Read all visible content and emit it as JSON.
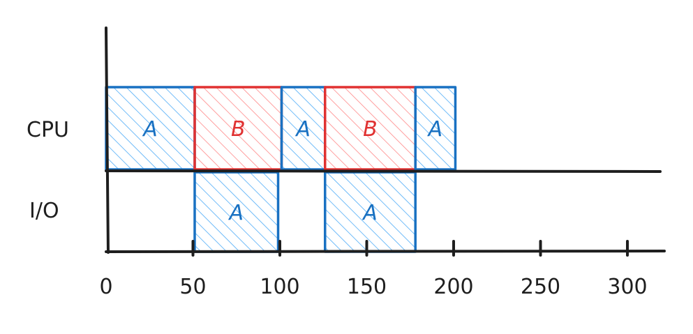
{
  "rows": [
    {
      "id": "cpu",
      "label": "CPU"
    },
    {
      "id": "io",
      "label": "I/O"
    }
  ],
  "axis": {
    "ticks": [
      0,
      50,
      100,
      150,
      200,
      250,
      300
    ],
    "tick_labels": [
      "0",
      "50",
      "100",
      "150",
      "200",
      "250",
      "300"
    ]
  },
  "blocks": [
    {
      "row": "cpu",
      "label": "A",
      "start": 0,
      "end": 51,
      "process": "A"
    },
    {
      "row": "cpu",
      "label": "B",
      "start": 51,
      "end": 101,
      "process": "B"
    },
    {
      "row": "cpu",
      "label": "A",
      "start": 101,
      "end": 126,
      "process": "A"
    },
    {
      "row": "cpu",
      "label": "B",
      "start": 126,
      "end": 178,
      "process": "B"
    },
    {
      "row": "cpu",
      "label": "A",
      "start": 178,
      "end": 201,
      "process": "A"
    },
    {
      "row": "io",
      "label": "A",
      "start": 51,
      "end": 99,
      "process": "A"
    },
    {
      "row": "io",
      "label": "A",
      "start": 126,
      "end": 178,
      "process": "A"
    }
  ],
  "colors": {
    "A": {
      "stroke": "#1971c2",
      "hatch": "#4dabf7",
      "text": "#1971c2"
    },
    "B": {
      "stroke": "#e03131",
      "hatch": "#ff8787",
      "text": "#e03131"
    },
    "axis": "#1e1e1e"
  }
}
